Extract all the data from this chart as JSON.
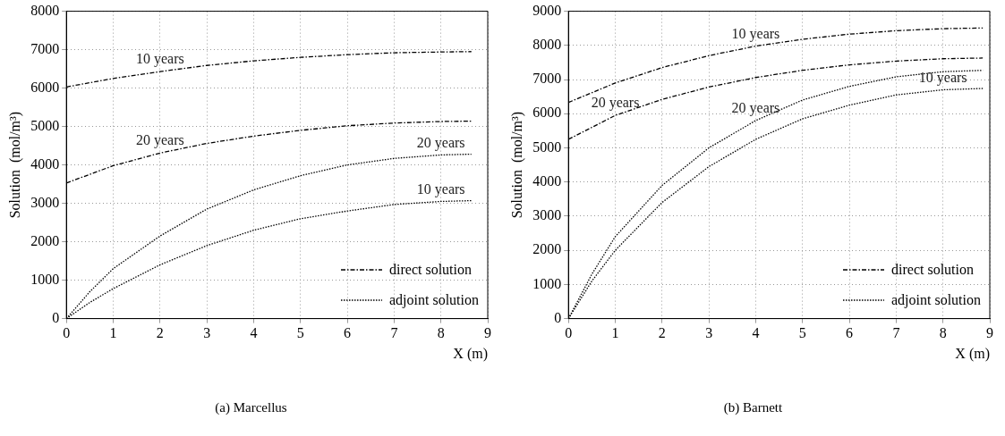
{
  "chart_data": [
    {
      "type": "line",
      "title": "(a) Marcellus",
      "xlabel": "X (m)",
      "ylabel": "Solution  (mol/m³)",
      "xlim": [
        0,
        9
      ],
      "ylim": [
        0,
        8000
      ],
      "xticks": [
        0,
        1,
        2,
        3,
        4,
        5,
        6,
        7,
        8,
        9
      ],
      "yticks": [
        0,
        1000,
        2000,
        3000,
        4000,
        5000,
        6000,
        7000,
        8000
      ],
      "grid": true,
      "legend": "bottom right",
      "marker": "none",
      "series": [
        {
          "name": "direct solution",
          "color": "#000000",
          "line_style": "dashdot",
          "x": [
            0,
            1,
            2,
            3,
            4,
            5,
            6,
            7,
            8,
            8.65
          ],
          "values": [
            6030,
            6250,
            6430,
            6590,
            6710,
            6800,
            6870,
            6920,
            6940,
            6950
          ]
        },
        {
          "color": "#000000",
          "line_style": "dashdot",
          "x": [
            0,
            1,
            2,
            3,
            4,
            5,
            6,
            7,
            8,
            8.65
          ],
          "values": [
            3530,
            3980,
            4310,
            4560,
            4750,
            4900,
            5020,
            5090,
            5130,
            5140
          ]
        },
        {
          "name": "adjoint solution",
          "color": "#000000",
          "line_style": "dotted",
          "x": [
            0,
            0.5,
            1,
            2,
            3,
            4,
            5,
            6,
            7,
            8,
            8.65
          ],
          "values": [
            0,
            700,
            1300,
            2150,
            2850,
            3350,
            3720,
            4000,
            4170,
            4260,
            4280
          ]
        },
        {
          "color": "#000000",
          "line_style": "dotted",
          "x": [
            0,
            0.5,
            1,
            2,
            3,
            4,
            5,
            6,
            7,
            8,
            8.65
          ],
          "values": [
            0,
            420,
            780,
            1400,
            1900,
            2300,
            2600,
            2800,
            2970,
            3050,
            3070
          ]
        }
      ],
      "annotations": [
        {
          "text": "10 years",
          "x": 2,
          "y": 6430
        },
        {
          "text": "20 years",
          "x": 2,
          "y": 4310
        },
        {
          "text": "20 years",
          "x": 8,
          "y": 4260
        },
        {
          "text": "10 years",
          "x": 8,
          "y": 3050
        }
      ]
    },
    {
      "type": "line",
      "title": "(b) Barnett",
      "xlabel": "X (m)",
      "ylabel": "Solution  (mol/m³)",
      "xlim": [
        0,
        9
      ],
      "ylim": [
        0,
        9000
      ],
      "xticks": [
        0,
        1,
        2,
        3,
        4,
        5,
        6,
        7,
        8,
        9
      ],
      "yticks": [
        0,
        1000,
        2000,
        3000,
        4000,
        5000,
        6000,
        7000,
        8000,
        9000
      ],
      "grid": true,
      "legend": "bottom right",
      "marker": "none",
      "series": [
        {
          "name": "direct solution",
          "color": "#000000",
          "line_style": "dashdot",
          "x": [
            0,
            1,
            2,
            3,
            4,
            5,
            6,
            7,
            8,
            8.85
          ],
          "values": [
            6330,
            6900,
            7350,
            7700,
            7980,
            8180,
            8330,
            8430,
            8490,
            8510
          ]
        },
        {
          "color": "#000000",
          "line_style": "dashdot",
          "x": [
            0,
            1,
            2,
            3,
            4,
            5,
            6,
            7,
            8,
            8.85
          ],
          "values": [
            5250,
            5950,
            6420,
            6780,
            7060,
            7270,
            7430,
            7540,
            7610,
            7630
          ]
        },
        {
          "name": "adjoint solution",
          "color": "#000000",
          "line_style": "dotted",
          "x": [
            0,
            0.5,
            1,
            2,
            3,
            4,
            5,
            6,
            7,
            8,
            8.85
          ],
          "values": [
            0,
            1300,
            2400,
            3900,
            5000,
            5800,
            6400,
            6800,
            7080,
            7230,
            7270
          ]
        },
        {
          "color": "#000000",
          "line_style": "dotted",
          "x": [
            0,
            0.5,
            1,
            2,
            3,
            4,
            5,
            6,
            7,
            8,
            8.85
          ],
          "values": [
            0,
            1100,
            2000,
            3400,
            4450,
            5250,
            5850,
            6250,
            6550,
            6700,
            6740
          ]
        }
      ],
      "annotations": [
        {
          "text": "10 years",
          "x": 4,
          "y": 7980
        },
        {
          "text": "20 years",
          "x": 1,
          "y": 5950
        },
        {
          "text": "20 years",
          "x": 4,
          "y": 5800
        },
        {
          "text": "10 years",
          "x": 8,
          "y": 6700
        }
      ]
    }
  ]
}
